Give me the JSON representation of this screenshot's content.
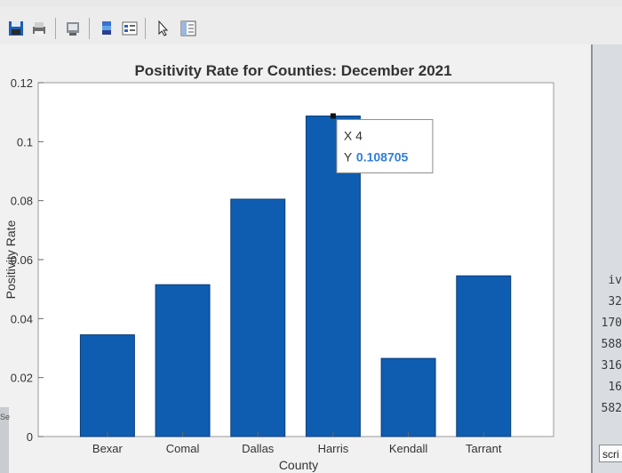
{
  "toolbar": {
    "buttons": [
      "save-icon",
      "print-icon",
      "link-icon",
      "colorbar-icon",
      "legend-icon",
      "pointer-icon",
      "property-inspector-icon"
    ]
  },
  "side_panel": {
    "lines": [
      "iv",
      "32",
      "170",
      "588",
      "316",
      "16",
      "582"
    ],
    "scri_label": "scri",
    "left_label": "Se"
  },
  "chart_data": {
    "type": "bar",
    "title": "Positivity Rate for Counties: December 2021",
    "xlabel": "County",
    "ylabel": "Positivity Rate",
    "categories": [
      "Bexar",
      "Comal",
      "Dallas",
      "Harris",
      "Kendall",
      "Tarrant"
    ],
    "values": [
      0.0345,
      0.0515,
      0.0805,
      0.108705,
      0.0265,
      0.0545
    ],
    "ylim": [
      0,
      0.12
    ],
    "yticks": [
      "0",
      "0.02",
      "0.04",
      "0.06",
      "0.08",
      "0.1",
      "0.12"
    ],
    "bar_color": "#0f5db0",
    "grid": false,
    "datatip": {
      "x_line": "X 4",
      "y_label": "Y",
      "y_value": "0.108705"
    }
  }
}
